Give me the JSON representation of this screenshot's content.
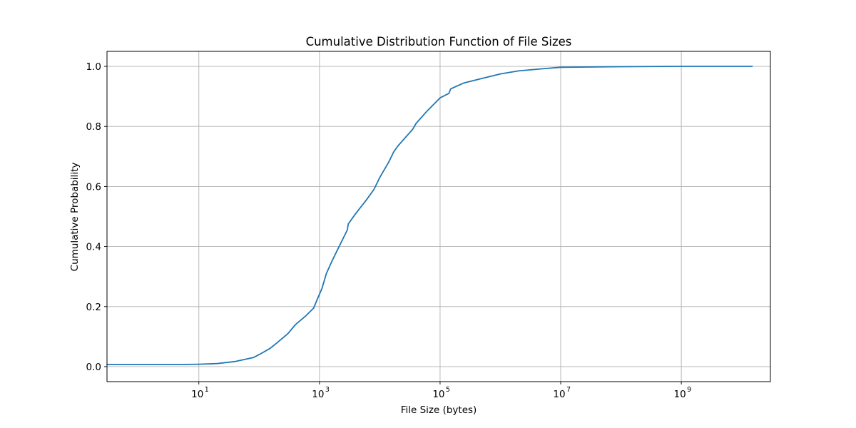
{
  "colors": {
    "series": "#1f77b4",
    "grid": "#b0b0b0",
    "axes": "#000000",
    "background": "#ffffff"
  },
  "chart_data": {
    "type": "line",
    "title": "Cumulative Distribution Function of File Sizes",
    "xlabel": "File Size (bytes)",
    "ylabel": "Cumulative Probability",
    "xscale": "log",
    "xlim": [
      0.3,
      30000000000.0
    ],
    "ylim": [
      -0.05,
      1.05
    ],
    "grid": true,
    "legend": "none",
    "x_ticks": [
      {
        "base": "10",
        "exp": "1",
        "value": 10
      },
      {
        "base": "10",
        "exp": "3",
        "value": 1000
      },
      {
        "base": "10",
        "exp": "5",
        "value": 100000
      },
      {
        "base": "10",
        "exp": "7",
        "value": 10000000
      },
      {
        "base": "10",
        "exp": "9",
        "value": 1000000000
      }
    ],
    "y_ticks": [
      {
        "label": "0.0",
        "value": 0.0
      },
      {
        "label": "0.2",
        "value": 0.2
      },
      {
        "label": "0.4",
        "value": 0.4
      },
      {
        "label": "0.6",
        "value": 0.6
      },
      {
        "label": "0.8",
        "value": 0.8
      },
      {
        "label": "1.0",
        "value": 1.0
      }
    ],
    "series": [
      {
        "x": [
          0.3,
          1,
          5,
          10,
          20,
          40,
          80,
          100,
          150,
          200,
          300,
          400,
          600,
          800,
          900,
          1100,
          1300,
          1600,
          2000,
          2900,
          3000,
          4000,
          6000,
          8000,
          10000,
          14000,
          17000,
          20000,
          30000,
          35000,
          40000,
          60000,
          100000,
          140000,
          150000,
          250000,
          500000,
          1000000,
          2000000,
          5000000,
          10000000,
          100000000,
          1000000000,
          15000000000
        ],
        "y": [
          0.007,
          0.007,
          0.007,
          0.008,
          0.01,
          0.017,
          0.03,
          0.04,
          0.06,
          0.08,
          0.11,
          0.14,
          0.17,
          0.195,
          0.22,
          0.26,
          0.31,
          0.35,
          0.39,
          0.455,
          0.475,
          0.51,
          0.555,
          0.59,
          0.63,
          0.68,
          0.715,
          0.735,
          0.775,
          0.79,
          0.81,
          0.85,
          0.895,
          0.91,
          0.925,
          0.945,
          0.96,
          0.975,
          0.985,
          0.992,
          0.997,
          0.999,
          1.0,
          1.0
        ]
      }
    ]
  }
}
